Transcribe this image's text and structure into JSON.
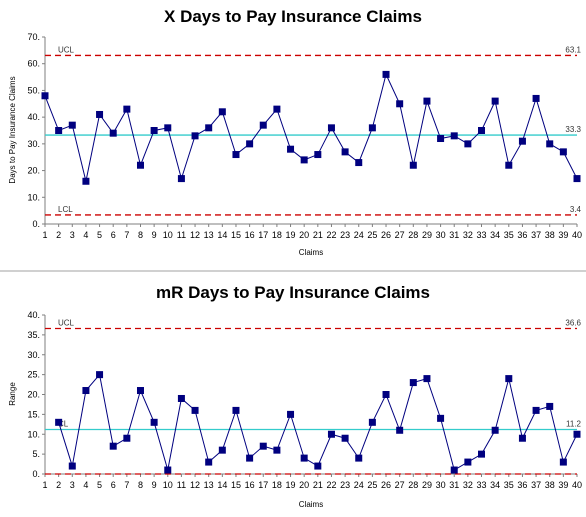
{
  "colors": {
    "series": "#00007f",
    "marker": "#00007f",
    "center_line": "#33cccc",
    "control_limit": "#cc0000",
    "axis": "#7f7f7f",
    "separator": "#a0a0a0"
  },
  "chart_data": [
    {
      "type": "line",
      "title": "X Days to Pay Insurance Claims",
      "xlabel": "Claims",
      "ylabel": "Days to Pay Insurance Claims",
      "ylim": [
        0,
        70
      ],
      "yticks": [
        0,
        10,
        20,
        30,
        40,
        50,
        60,
        70
      ],
      "ytick_labels": [
        "0.",
        "10.",
        "20.",
        "30.",
        "40.",
        "50.",
        "60.",
        "70."
      ],
      "grid": false,
      "categories": [
        "1",
        "2",
        "3",
        "4",
        "5",
        "6",
        "7",
        "8",
        "9",
        "10",
        "11",
        "12",
        "13",
        "14",
        "15",
        "16",
        "17",
        "18",
        "19",
        "20",
        "21",
        "22",
        "23",
        "24",
        "25",
        "26",
        "27",
        "28",
        "29",
        "30",
        "31",
        "32",
        "33",
        "34",
        "35",
        "36",
        "37",
        "38",
        "39",
        "40"
      ],
      "series": [
        {
          "values": [
            48,
            35,
            37,
            16,
            41,
            34,
            43,
            22,
            35,
            36,
            17,
            33,
            36,
            42,
            26,
            30,
            37,
            43,
            28,
            24,
            26,
            36,
            27,
            23,
            36,
            56,
            45,
            22,
            46,
            32,
            33,
            30,
            35,
            46,
            22,
            31,
            47,
            30,
            27,
            17
          ]
        }
      ],
      "lines": {
        "ucl": {
          "label": "UCL",
          "value": 63.1,
          "value_label": "63.1"
        },
        "center": {
          "label": "",
          "value": 33.3,
          "value_label": "33.3"
        },
        "lcl": {
          "label": "LCL",
          "value": 3.4,
          "value_label": "3.4"
        }
      }
    },
    {
      "type": "line",
      "title": "mR Days to Pay Insurance Claims",
      "xlabel": "Claims",
      "ylabel": "Range",
      "ylim": [
        0,
        40
      ],
      "yticks": [
        0,
        5,
        10,
        15,
        20,
        25,
        30,
        35,
        40
      ],
      "ytick_labels": [
        "0.",
        "5.",
        "10.",
        "15.",
        "20.",
        "25.",
        "30.",
        "35.",
        "40."
      ],
      "grid": false,
      "categories": [
        "1",
        "2",
        "3",
        "4",
        "5",
        "6",
        "7",
        "8",
        "9",
        "10",
        "11",
        "12",
        "13",
        "14",
        "15",
        "16",
        "17",
        "18",
        "19",
        "20",
        "21",
        "22",
        "23",
        "24",
        "25",
        "26",
        "27",
        "28",
        "29",
        "30",
        "31",
        "32",
        "33",
        "34",
        "35",
        "36",
        "37",
        "38",
        "39",
        "40"
      ],
      "series": [
        {
          "values": [
            null,
            13,
            2,
            21,
            25,
            7,
            9,
            21,
            13,
            1,
            19,
            16,
            3,
            6,
            16,
            4,
            7,
            6,
            15,
            4,
            2,
            10,
            9,
            4,
            13,
            20,
            11,
            23,
            24,
            14,
            1,
            3,
            5,
            11,
            24,
            9,
            16,
            17,
            3,
            10
          ]
        }
      ],
      "lines": {
        "ucl": {
          "label": "UCL",
          "value": 36.6,
          "value_label": "36.6"
        },
        "center": {
          "label": "CL",
          "value": 11.2,
          "value_label": "11.2"
        },
        "lcl": {
          "label": "",
          "value": 0,
          "value_label": ""
        }
      }
    }
  ]
}
